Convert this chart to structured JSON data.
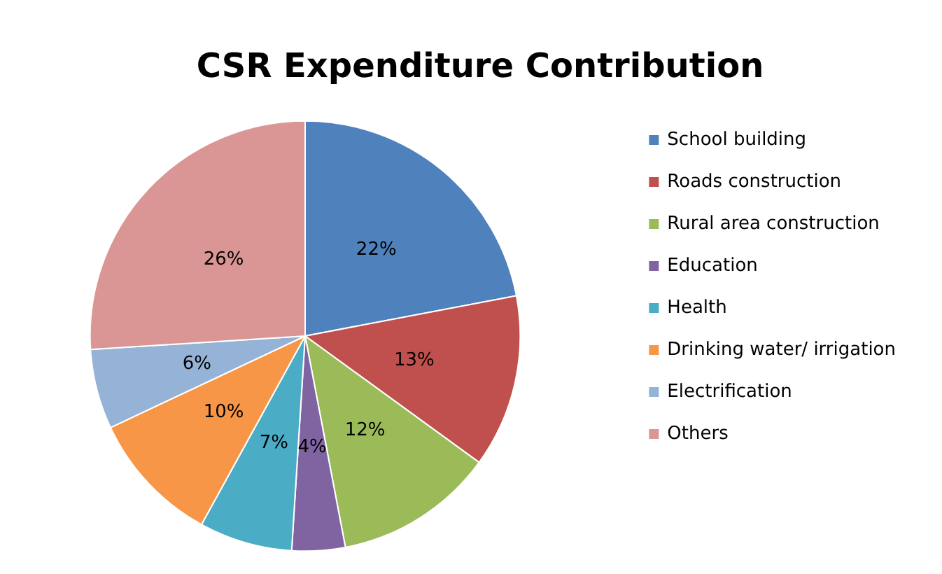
{
  "chart_data": {
    "type": "pie",
    "title": "CSR Expenditure Contribution",
    "categories": [
      "School building",
      "Roads construction",
      "Rural area construction",
      "Education",
      "Health",
      "Drinking water/ irrigation",
      "Electrification",
      "Others"
    ],
    "values": [
      22,
      13,
      12,
      4,
      7,
      10,
      6,
      26
    ],
    "value_labels": [
      "22%",
      "13%",
      "12%",
      "4%",
      "7%",
      "10%",
      "6%",
      "26%"
    ],
    "colors": [
      "#4f81bd",
      "#c0504d",
      "#9bbb59",
      "#8064a2",
      "#4bacc6",
      "#f79646",
      "#95b3d7",
      "#d99694"
    ],
    "legend": "right"
  }
}
